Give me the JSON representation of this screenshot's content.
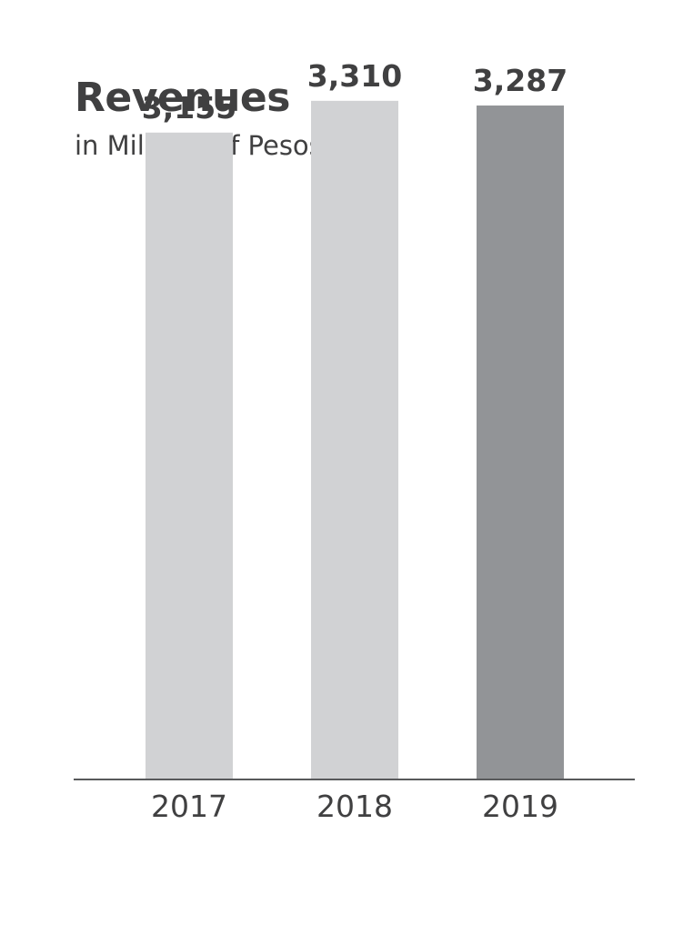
{
  "chart_data": {
    "type": "bar",
    "title": "Revenues",
    "subtitle": "in Millions of Pesos",
    "categories": [
      "2017",
      "2018",
      "2019"
    ],
    "values": [
      3155,
      3310,
      3287
    ],
    "value_labels": [
      "3,155",
      "3,310",
      "3,287"
    ],
    "bar_colors": [
      "#d1d2d4",
      "#d1d2d4",
      "#929497"
    ],
    "axis_color": "#58595b",
    "grid": false,
    "ylim": [
      0,
      3500
    ]
  }
}
